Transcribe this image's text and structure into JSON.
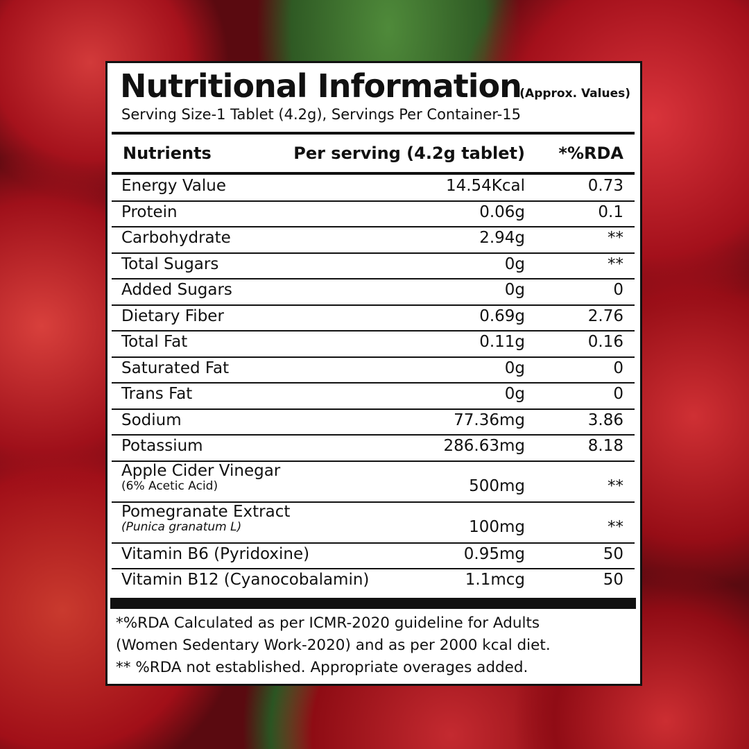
{
  "label": {
    "title": "Nutritional Information",
    "approx": "(Approx. Values)",
    "serving": "Serving Size-1 Tablet (4.2g), Servings Per Container-15",
    "headers": {
      "nutrient": "Nutrients",
      "per_serving": "Per serving (4.2g tablet)",
      "rda": "*%RDA"
    },
    "rows": [
      {
        "name": "Energy Value",
        "sub": "",
        "value": "14.54Kcal",
        "rda": "0.73"
      },
      {
        "name": "Protein",
        "sub": "",
        "value": "0.06g",
        "rda": "0.1"
      },
      {
        "name": "Carbohydrate",
        "sub": "",
        "value": "2.94g",
        "rda": "**"
      },
      {
        "name": "Total Sugars",
        "sub": "",
        "value": "0g",
        "rda": "**"
      },
      {
        "name": "Added Sugars",
        "sub": "",
        "value": "0g",
        "rda": "0"
      },
      {
        "name": "Dietary Fiber",
        "sub": "",
        "value": "0.69g",
        "rda": "2.76"
      },
      {
        "name": "Total Fat",
        "sub": "",
        "value": "0.11g",
        "rda": "0.16"
      },
      {
        "name": "Saturated Fat",
        "sub": "",
        "value": "0g",
        "rda": "0"
      },
      {
        "name": "Trans Fat",
        "sub": "",
        "value": "0g",
        "rda": "0"
      },
      {
        "name": "Sodium",
        "sub": "",
        "value": "77.36mg",
        "rda": "3.86"
      },
      {
        "name": "Potassium",
        "sub": "",
        "value": "286.63mg",
        "rda": "8.18"
      },
      {
        "name": "Apple Cider Vinegar",
        "sub": "(6% Acetic Acid)",
        "value": "500mg",
        "rda": "**"
      },
      {
        "name": "Pomegranate Extract",
        "sub": "(Punica granatum L)",
        "value": "100mg",
        "rda": "**"
      },
      {
        "name": "Vitamin B6 (Pyridoxine)",
        "sub": "",
        "value": "0.95mg",
        "rda": "50"
      },
      {
        "name": "Vitamin B12 (Cyanocobalamin)",
        "sub": "",
        "value": "1.1mcg",
        "rda": "50"
      }
    ],
    "footnotes": [
      "*%RDA Calculated as per ICMR-2020 guideline for Adults",
      "(Women Sedentary Work-2020) and as per 2000 kcal diet.",
      "** %RDA not established. Appropriate overages added."
    ]
  }
}
